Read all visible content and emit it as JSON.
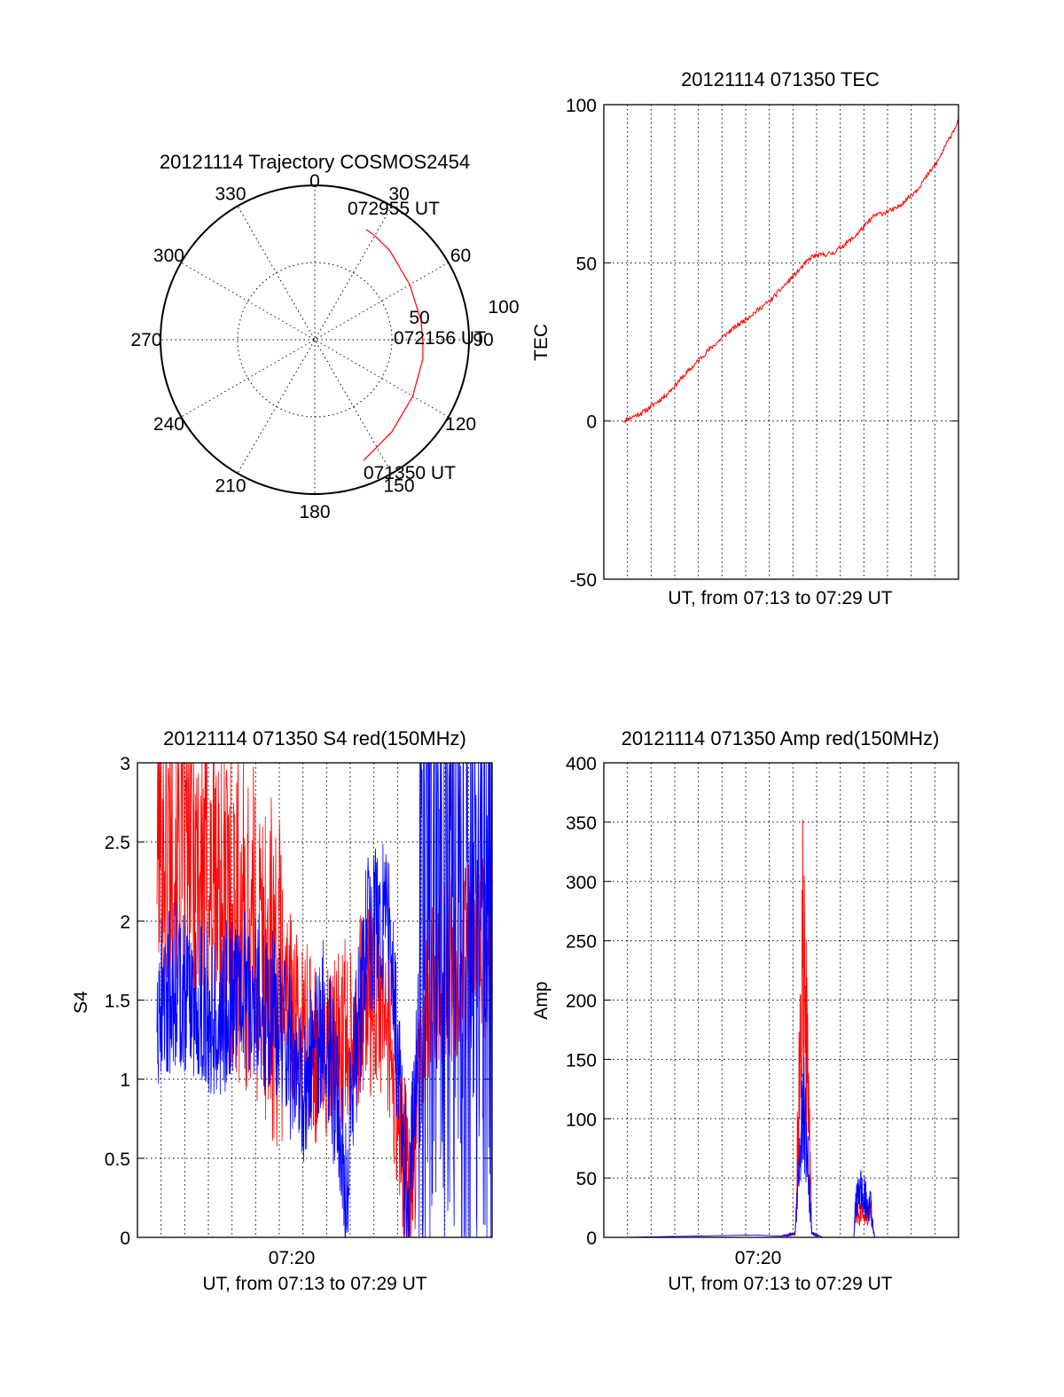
{
  "chart_data": [
    {
      "type": "polar",
      "title": "20121114 Trajectory COSMOS2454",
      "azimuth_labels": [
        "0",
        "30",
        "60",
        "90",
        "120",
        "150",
        "180",
        "210",
        "240",
        "270",
        "300",
        "330"
      ],
      "radial_labels": [
        "50",
        "100"
      ],
      "trajectory": {
        "color": "#ff0000",
        "start_label": "071350 UT",
        "mid_label": "072156 UT",
        "end_label": "072955 UT",
        "points": [
          [
            158,
            76
          ],
          [
            140,
            70
          ],
          [
            120,
            66
          ],
          [
            100,
            64
          ],
          [
            90,
            63
          ],
          [
            80,
            63
          ],
          [
            60,
            64
          ],
          [
            40,
            68
          ],
          [
            30,
            70
          ],
          [
            25,
            71
          ]
        ]
      }
    },
    {
      "type": "line",
      "title": "20121114 071350 TEC",
      "xlabel": "UT, from 07:13 to 07:29 UT",
      "ylabel": "TEC",
      "ylim": [
        -50,
        100
      ],
      "yticks": [
        "100",
        "50",
        "0",
        "-50"
      ],
      "xlim_minutes": [
        0,
        16
      ],
      "series": [
        {
          "color": "#ff0000",
          "x": [
            0,
            1,
            2,
            3,
            4,
            5,
            6,
            7,
            8,
            9,
            10,
            11,
            12,
            13,
            14,
            15,
            16
          ],
          "values": [
            0,
            3,
            8,
            15,
            22,
            28,
            33,
            38,
            45,
            52,
            53,
            58,
            65,
            67,
            73,
            82,
            95
          ]
        }
      ]
    },
    {
      "type": "line",
      "title": "20121114 071350 S4 red(150MHz)",
      "xlabel": "UT, from 07:13 to 07:29 UT",
      "ylabel": "S4",
      "ylim": [
        0,
        3
      ],
      "yticks": [
        "3",
        "2.5",
        "2",
        "1.5",
        "1",
        "0.5",
        "0"
      ],
      "xticks": [
        "07:20"
      ],
      "series": [
        {
          "color": "#ff0000",
          "x": [
            0,
            1,
            2,
            3,
            4,
            5,
            6,
            7,
            8,
            9,
            10,
            11,
            12,
            13,
            14,
            15,
            16
          ],
          "values": [
            2.6,
            2.5,
            2.4,
            2.2,
            2.0,
            1.8,
            1.6,
            1.3,
            1.1,
            1.3,
            1.5,
            1.4,
            0.2,
            1.6,
            1.7,
            1.8,
            1.9
          ]
        },
        {
          "color": "#0000ff",
          "x": [
            0,
            1,
            2,
            3,
            4,
            5,
            6,
            7,
            8,
            9,
            10,
            11,
            12,
            13,
            14,
            15,
            16
          ],
          "values": [
            1.5,
            1.6,
            1.5,
            1.4,
            1.6,
            1.5,
            1.3,
            0.9,
            1.4,
            0.4,
            1.9,
            2.0,
            0.2,
            2.2,
            2.0,
            1.5,
            2.0
          ]
        }
      ]
    },
    {
      "type": "line",
      "title": "20121114 071350 Amp red(150MHz)",
      "xlabel": "UT, from 07:13 to 07:29 UT",
      "ylabel": "Amp",
      "ylim": [
        0,
        400
      ],
      "yticks": [
        "400",
        "350",
        "300",
        "250",
        "200",
        "150",
        "100",
        "50",
        "0"
      ],
      "xticks": [
        "07:20"
      ],
      "series": [
        {
          "color": "#ff0000",
          "x": [
            0,
            7.5,
            8.2,
            8.4,
            8.6,
            8.8,
            9.0,
            9.5,
            11.0,
            11.1,
            11.8,
            12.0,
            16
          ],
          "values": [
            0,
            0,
            5,
            200,
            385,
            200,
            5,
            0,
            0,
            30,
            30,
            0,
            0
          ]
        },
        {
          "color": "#0000ff",
          "x": [
            0,
            6.3,
            7.5,
            8.2,
            8.4,
            8.6,
            8.8,
            9.0,
            9.5,
            11.0,
            11.1,
            11.4,
            11.8,
            12.0,
            16
          ],
          "values": [
            0,
            2,
            1,
            5,
            100,
            165,
            100,
            5,
            0,
            0,
            45,
            60,
            40,
            0,
            0
          ]
        }
      ]
    }
  ]
}
